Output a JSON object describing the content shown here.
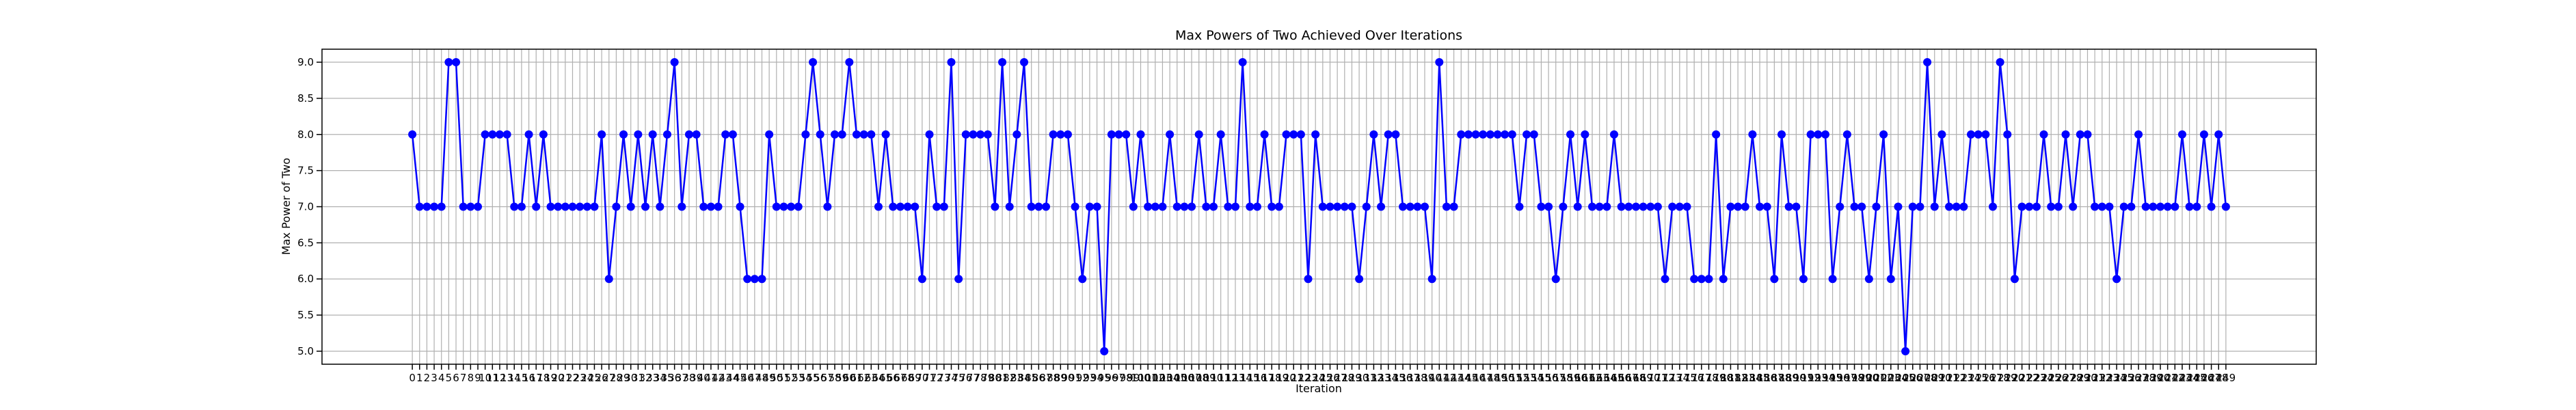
{
  "chart_data": {
    "type": "line",
    "title": "Max Powers of Two Achieved Over Iterations",
    "x_label": "Iteration",
    "y_label": "Max Power of Two",
    "grid": true,
    "color": "#0000ff",
    "marker": "circle",
    "xlim": [
      -12.4,
      261.4
    ],
    "ylim": [
      4.82,
      9.18
    ],
    "yticks": [
      {
        "value": 5,
        "label": "5.0"
      },
      {
        "value": 5.5,
        "label": "5.5"
      },
      {
        "value": 6,
        "label": "6.0"
      },
      {
        "value": 6.5,
        "label": "6.5"
      },
      {
        "value": 7,
        "label": "7.0"
      },
      {
        "value": 7.5,
        "label": "7.5"
      },
      {
        "value": 8,
        "label": "8.0"
      },
      {
        "value": 8.5,
        "label": "8.5"
      },
      {
        "value": 9,
        "label": "9.0"
      }
    ],
    "xticks": [
      0,
      1,
      2,
      3,
      4,
      5,
      6,
      7,
      8,
      9,
      10,
      11,
      12,
      13,
      14,
      15,
      16,
      17,
      18,
      19,
      20,
      21,
      22,
      23,
      24,
      25,
      26,
      27,
      28,
      29,
      30,
      31,
      32,
      33,
      34,
      35,
      36,
      37,
      38,
      39,
      40,
      41,
      42,
      43,
      44,
      45,
      46,
      47,
      48,
      49,
      50,
      51,
      52,
      53,
      54,
      55,
      56,
      57,
      58,
      59,
      60,
      61,
      62,
      63,
      64,
      65,
      66,
      67,
      68,
      69,
      70,
      71,
      72,
      73,
      74,
      75,
      76,
      77,
      78,
      79,
      80,
      81,
      82,
      83,
      84,
      85,
      86,
      87,
      88,
      89,
      90,
      91,
      92,
      93,
      94,
      95,
      96,
      97,
      98,
      99,
      100,
      101,
      102,
      103,
      104,
      105,
      106,
      107,
      108,
      109,
      110,
      111,
      112,
      113,
      114,
      115,
      116,
      117,
      118,
      119,
      120,
      121,
      122,
      123,
      124,
      125,
      126,
      127,
      128,
      129,
      130,
      131,
      132,
      133,
      134,
      135,
      136,
      137,
      138,
      139,
      140,
      141,
      142,
      143,
      144,
      145,
      146,
      147,
      148,
      149,
      150,
      151,
      152,
      153,
      154,
      155,
      156,
      157,
      158,
      159,
      160,
      161,
      162,
      163,
      164,
      165,
      166,
      167,
      168,
      169,
      170,
      171,
      172,
      173,
      174,
      175,
      176,
      177,
      178,
      179,
      180,
      181,
      182,
      183,
      184,
      185,
      186,
      187,
      188,
      189,
      190,
      191,
      192,
      193,
      194,
      195,
      196,
      197,
      198,
      199,
      200,
      201,
      202,
      203,
      204,
      205,
      206,
      207,
      208,
      209,
      210,
      211,
      212,
      213,
      214,
      215,
      216,
      217,
      218,
      219,
      220,
      221,
      222,
      223,
      224,
      225,
      226,
      227,
      228,
      229,
      230,
      231,
      232,
      233,
      234,
      235,
      236,
      237,
      238,
      239,
      240,
      241,
      242,
      243,
      244,
      245,
      246,
      247,
      248,
      249
    ],
    "x": [
      0,
      1,
      2,
      3,
      4,
      5,
      6,
      7,
      8,
      9,
      10,
      11,
      12,
      13,
      14,
      15,
      16,
      17,
      18,
      19,
      20,
      21,
      22,
      23,
      24,
      25,
      26,
      27,
      28,
      29,
      30,
      31,
      32,
      33,
      34,
      35,
      36,
      37,
      38,
      39,
      40,
      41,
      42,
      43,
      44,
      45,
      46,
      47,
      48,
      49,
      50,
      51,
      52,
      53,
      54,
      55,
      56,
      57,
      58,
      59,
      60,
      61,
      62,
      63,
      64,
      65,
      66,
      67,
      68,
      69,
      70,
      71,
      72,
      73,
      74,
      75,
      76,
      77,
      78,
      79,
      80,
      81,
      82,
      83,
      84,
      85,
      86,
      87,
      88,
      89,
      90,
      91,
      92,
      93,
      94,
      95,
      96,
      97,
      98,
      99,
      100,
      101,
      102,
      103,
      104,
      105,
      106,
      107,
      108,
      109,
      110,
      111,
      112,
      113,
      114,
      115,
      116,
      117,
      118,
      119,
      120,
      121,
      122,
      123,
      124,
      125,
      126,
      127,
      128,
      129,
      130,
      131,
      132,
      133,
      134,
      135,
      136,
      137,
      138,
      139,
      140,
      141,
      142,
      143,
      144,
      145,
      146,
      147,
      148,
      149,
      150,
      151,
      152,
      153,
      154,
      155,
      156,
      157,
      158,
      159,
      160,
      161,
      162,
      163,
      164,
      165,
      166,
      167,
      168,
      169,
      170,
      171,
      172,
      173,
      174,
      175,
      176,
      177,
      178,
      179,
      180,
      181,
      182,
      183,
      184,
      185,
      186,
      187,
      188,
      189,
      190,
      191,
      192,
      193,
      194,
      195,
      196,
      197,
      198,
      199,
      200,
      201,
      202,
      203,
      204,
      205,
      206,
      207,
      208,
      209,
      210,
      211,
      212,
      213,
      214,
      215,
      216,
      217,
      218,
      219,
      220,
      221,
      222,
      223,
      224,
      225,
      226,
      227,
      228,
      229,
      230,
      231,
      232,
      233,
      234,
      235,
      236,
      237,
      238,
      239,
      240,
      241,
      242,
      243,
      244,
      245,
      246,
      247,
      248,
      249
    ],
    "values": [
      8,
      7,
      7,
      7,
      7,
      9,
      9,
      7,
      7,
      7,
      8,
      8,
      8,
      8,
      7,
      7,
      8,
      7,
      8,
      7,
      7,
      7,
      7,
      7,
      7,
      7,
      8,
      6,
      7,
      8,
      7,
      8,
      7,
      8,
      7,
      8,
      9,
      7,
      8,
      8,
      7,
      7,
      7,
      8,
      8,
      7,
      6,
      6,
      6,
      8,
      7,
      7,
      7,
      7,
      8,
      9,
      8,
      7,
      8,
      8,
      9,
      8,
      8,
      8,
      7,
      8,
      7,
      7,
      7,
      7,
      6,
      8,
      7,
      7,
      9,
      6,
      8,
      8,
      8,
      8,
      7,
      9,
      7,
      8,
      9,
      7,
      7,
      7,
      8,
      8,
      8,
      7,
      6,
      7,
      7,
      5,
      8,
      8,
      8,
      7,
      8,
      7,
      7,
      7,
      8,
      7,
      7,
      7,
      8,
      7,
      7,
      8,
      7,
      7,
      9,
      7,
      7,
      8,
      7,
      7,
      8,
      8,
      8,
      6,
      8,
      7,
      7,
      7,
      7,
      7,
      6,
      7,
      8,
      7,
      8,
      8,
      7,
      7,
      7,
      7,
      6,
      9,
      7,
      7,
      8,
      8,
      8,
      8,
      8,
      8,
      8,
      8,
      7,
      8,
      8,
      7,
      7,
      6,
      7,
      8,
      7,
      8,
      7,
      7,
      7,
      8,
      7,
      7,
      7,
      7,
      7,
      7,
      6,
      7,
      7,
      7,
      6,
      6,
      6,
      8,
      6,
      7,
      7,
      7,
      8,
      7,
      7,
      6,
      8,
      7,
      7,
      6,
      8,
      8,
      8,
      6,
      7,
      8,
      7,
      7,
      6,
      7,
      8,
      6,
      7,
      5,
      7,
      7,
      9,
      7,
      8,
      7,
      7,
      7,
      8,
      8,
      8,
      7,
      9,
      8,
      6,
      7,
      7,
      7,
      8,
      7,
      7,
      8,
      7,
      8,
      8,
      7,
      7,
      7,
      6,
      7,
      7,
      8,
      7,
      7,
      7,
      7,
      7,
      8,
      7,
      7,
      8,
      7,
      8,
      7
    ]
  }
}
